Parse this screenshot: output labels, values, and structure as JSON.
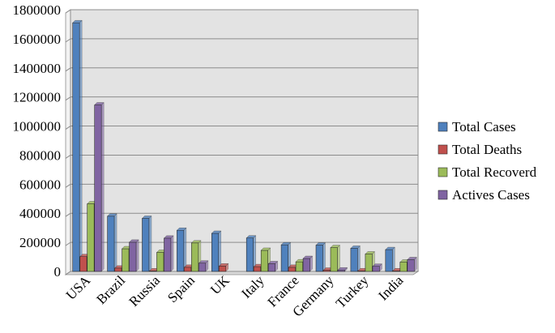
{
  "chart_data": {
    "type": "bar",
    "title": "",
    "xlabel": "",
    "ylabel": "",
    "ylim": [
      0,
      1800000
    ],
    "y_ticks": [
      0,
      200000,
      400000,
      600000,
      800000,
      1000000,
      1200000,
      1400000,
      1600000,
      1800000
    ],
    "y_tick_labels": [
      "0",
      "200000",
      "400000",
      "600000",
      "800000",
      "1000000",
      "1200000",
      "1400000",
      "1600000",
      "1800000"
    ],
    "grid": true,
    "legend_position": "right",
    "categories": [
      "USA",
      "Brazil",
      "Russia",
      "Spain",
      "UK",
      "Italy",
      "France",
      "Germany",
      "Turkey",
      "India"
    ],
    "series": [
      {
        "name": "Total Cases",
        "color": "#4f81bd",
        "values": [
          1710000,
          380000,
          365000,
          283000,
          262000,
          230000,
          183000,
          181000,
          159000,
          150000
        ]
      },
      {
        "name": "Total Deaths",
        "color": "#c0504d",
        "values": [
          102000,
          23000,
          3800,
          28700,
          37000,
          33000,
          28500,
          8400,
          4400,
          4300
        ]
      },
      {
        "name": "Total Recoverd",
        "color": "#9bbb59",
        "values": [
          465000,
          156000,
          131000,
          196000,
          0,
          145000,
          66000,
          164000,
          120000,
          64000
        ]
      },
      {
        "name": "Actives Cases",
        "color": "#8064a2",
        "values": [
          1145000,
          201000,
          229000,
          57000,
          0,
          53000,
          89000,
          10000,
          35000,
          81000
        ]
      }
    ]
  }
}
